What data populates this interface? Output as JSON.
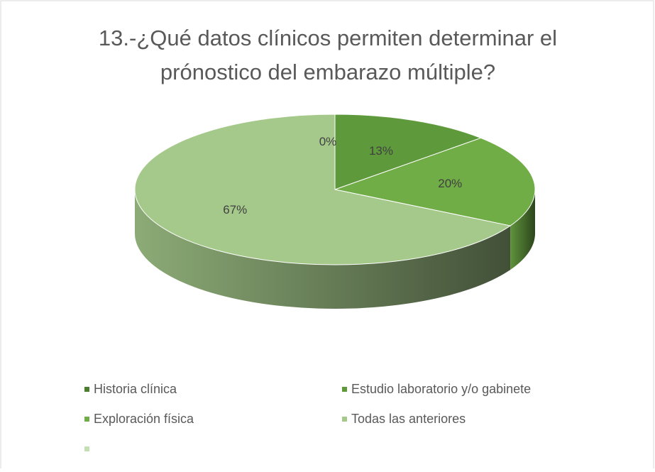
{
  "chart_data": {
    "type": "pie",
    "title": [
      "13.-¿Qué datos clínicos permiten determinar el",
      "prónostico del embarazo múltiple?"
    ],
    "categories": [
      "Historia clínica",
      "Estudio laboratorio y/o gabinete",
      "Exploración física",
      "Todas las anteriores",
      null
    ],
    "values": [
      0,
      13,
      20,
      67,
      null
    ],
    "value_labels": [
      "0%",
      "13%",
      "20%",
      "67%",
      null
    ],
    "colors": [
      "#4b7d2f",
      "#5e9a3c",
      "#70ad47",
      "#a5c98b",
      "#c5dfb4"
    ],
    "legend": "bottom"
  }
}
